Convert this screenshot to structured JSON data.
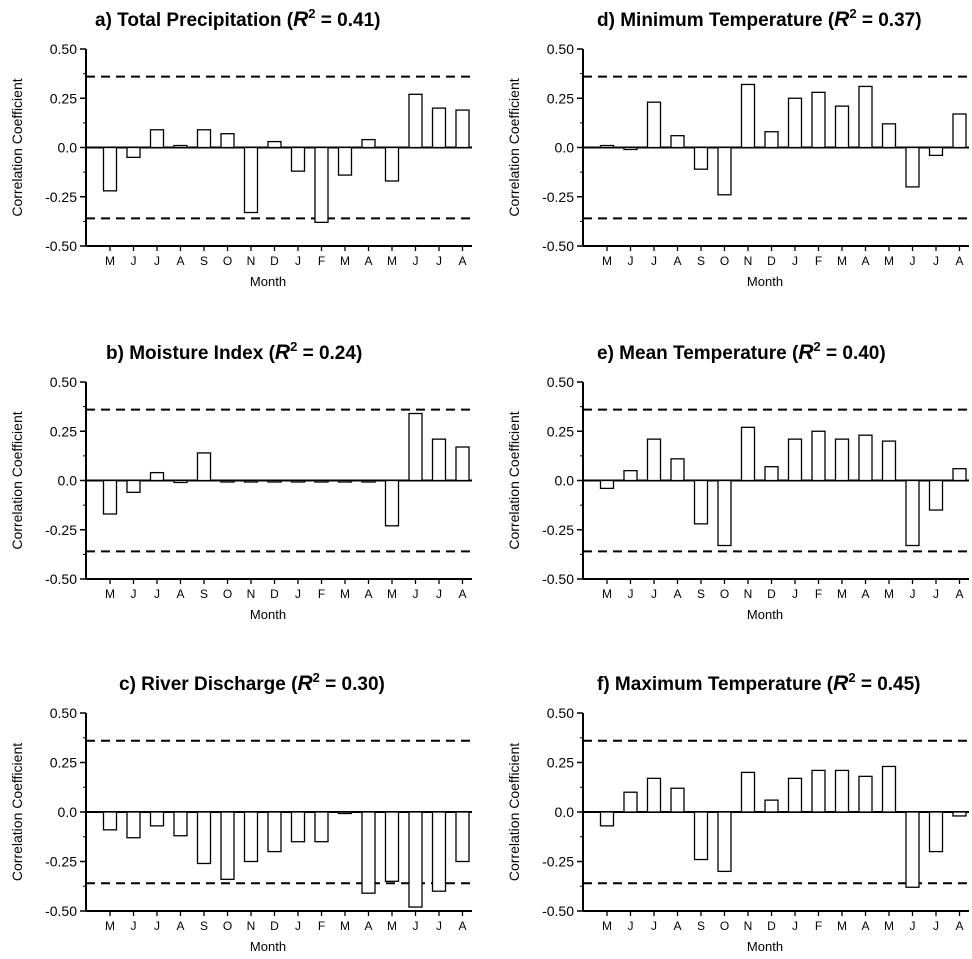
{
  "chart_data": [
    {
      "type": "bar",
      "panel": "a)",
      "title": "Total Precipitation",
      "r2_label": "R",
      "r2_sup": "2",
      "r2_value": "= 0.41",
      "xlabel": "Month",
      "ylabel": "Correlation Coefficient",
      "categories": [
        "M",
        "J",
        "J",
        "A",
        "S",
        "O",
        "N",
        "D",
        "J",
        "F",
        "M",
        "A",
        "M",
        "J",
        "J",
        "A"
      ],
      "values": [
        -0.22,
        -0.05,
        0.09,
        0.01,
        0.09,
        0.07,
        -0.33,
        0.03,
        -0.12,
        -0.38,
        -0.14,
        0.04,
        -0.17,
        0.27,
        0.2,
        0.19
      ],
      "yticks": [
        "0.50",
        "0.25",
        "0.0",
        "-0.25",
        "-0.50"
      ],
      "ylim": [
        -0.5,
        0.5
      ],
      "significance_lines": [
        0.36,
        -0.36
      ]
    },
    {
      "type": "bar",
      "panel": "b)",
      "title": "Moisture Index",
      "r2_label": "R",
      "r2_sup": "2",
      "r2_value": "= 0.24",
      "xlabel": "Month",
      "ylabel": "Correlation Coefficient",
      "categories": [
        "M",
        "J",
        "J",
        "A",
        "S",
        "O",
        "N",
        "D",
        "J",
        "F",
        "M",
        "A",
        "M",
        "J",
        "J",
        "A"
      ],
      "values": [
        -0.17,
        -0.06,
        0.04,
        -0.01,
        0.14,
        0,
        0,
        0,
        0,
        0,
        0,
        0,
        -0.23,
        0.34,
        0.21,
        0.17
      ],
      "yticks": [
        "0.50",
        "0.25",
        "0.0",
        "-0.25",
        "-0.50"
      ],
      "ylim": [
        -0.5,
        0.5
      ],
      "significance_lines": [
        0.36,
        -0.36
      ]
    },
    {
      "type": "bar",
      "panel": "c)",
      "title": "River Discharge",
      "r2_label": "R",
      "r2_sup": "2",
      "r2_value": "= 0.30",
      "xlabel": "Month",
      "ylabel": "Correlation Coefficient",
      "categories": [
        "M",
        "J",
        "J",
        "A",
        "S",
        "O",
        "N",
        "D",
        "J",
        "F",
        "M",
        "A",
        "M",
        "J",
        "J",
        "A"
      ],
      "values": [
        -0.09,
        -0.13,
        -0.07,
        -0.12,
        -0.26,
        -0.34,
        -0.25,
        -0.2,
        -0.15,
        -0.15,
        0,
        -0.41,
        -0.35,
        -0.48,
        -0.4,
        -0.25
      ],
      "yticks": [
        "0.50",
        "0.25",
        "0.0",
        "-0.25",
        "-0.50"
      ],
      "ylim": [
        -0.5,
        0.5
      ],
      "significance_lines": [
        0.36,
        -0.36
      ]
    },
    {
      "type": "bar",
      "panel": "d)",
      "title": "Minimum Temperature",
      "r2_label": "R",
      "r2_sup": "2",
      "r2_value": "= 0.37",
      "xlabel": "Month",
      "ylabel": "Correlation Coefficient",
      "categories": [
        "M",
        "J",
        "J",
        "A",
        "S",
        "O",
        "N",
        "D",
        "J",
        "F",
        "M",
        "A",
        "M",
        "J",
        "J",
        "A"
      ],
      "values": [
        0.01,
        -0.01,
        0.23,
        0.06,
        -0.11,
        -0.24,
        0.32,
        0.08,
        0.25,
        0.28,
        0.21,
        0.31,
        0.12,
        -0.2,
        -0.04,
        0.17
      ],
      "yticks": [
        "0.50",
        "0.25",
        "0.0",
        "-0.25",
        "-0.50"
      ],
      "ylim": [
        -0.5,
        0.5
      ],
      "significance_lines": [
        0.36,
        -0.36
      ]
    },
    {
      "type": "bar",
      "panel": "e)",
      "title": "Mean Temperature",
      "r2_label": "R",
      "r2_sup": "2",
      "r2_value": "= 0.40",
      "xlabel": "Month",
      "ylabel": "Correlation Coefficient",
      "categories": [
        "M",
        "J",
        "J",
        "A",
        "S",
        "O",
        "N",
        "D",
        "J",
        "F",
        "M",
        "A",
        "M",
        "J",
        "J",
        "A"
      ],
      "values": [
        -0.04,
        0.05,
        0.21,
        0.11,
        -0.22,
        -0.33,
        0.27,
        0.07,
        0.21,
        0.25,
        0.21,
        0.23,
        0.2,
        -0.33,
        -0.15,
        0.06
      ],
      "yticks": [
        "0.50",
        "0.25",
        "0.0",
        "-0.25",
        "-0.50"
      ],
      "ylim": [
        -0.5,
        0.5
      ],
      "significance_lines": [
        0.36,
        -0.36
      ]
    },
    {
      "type": "bar",
      "panel": "f)",
      "title": "Maximum Temperature",
      "r2_label": "R",
      "r2_sup": "2",
      "r2_value": "= 0.45",
      "xlabel": "Month",
      "ylabel": "Correlation Coefficient",
      "categories": [
        "M",
        "J",
        "J",
        "A",
        "S",
        "O",
        "N",
        "D",
        "J",
        "F",
        "M",
        "A",
        "M",
        "J",
        "J",
        "A"
      ],
      "values": [
        -0.07,
        0.1,
        0.17,
        0.12,
        -0.24,
        -0.3,
        0.2,
        0.06,
        0.17,
        0.21,
        0.21,
        0.18,
        0.23,
        -0.38,
        -0.2,
        -0.02
      ],
      "yticks": [
        "0.50",
        "0.25",
        "0.0",
        "-0.25",
        "-0.50"
      ],
      "ylim": [
        -0.5,
        0.5
      ],
      "significance_lines": [
        0.36,
        -0.36
      ]
    }
  ]
}
